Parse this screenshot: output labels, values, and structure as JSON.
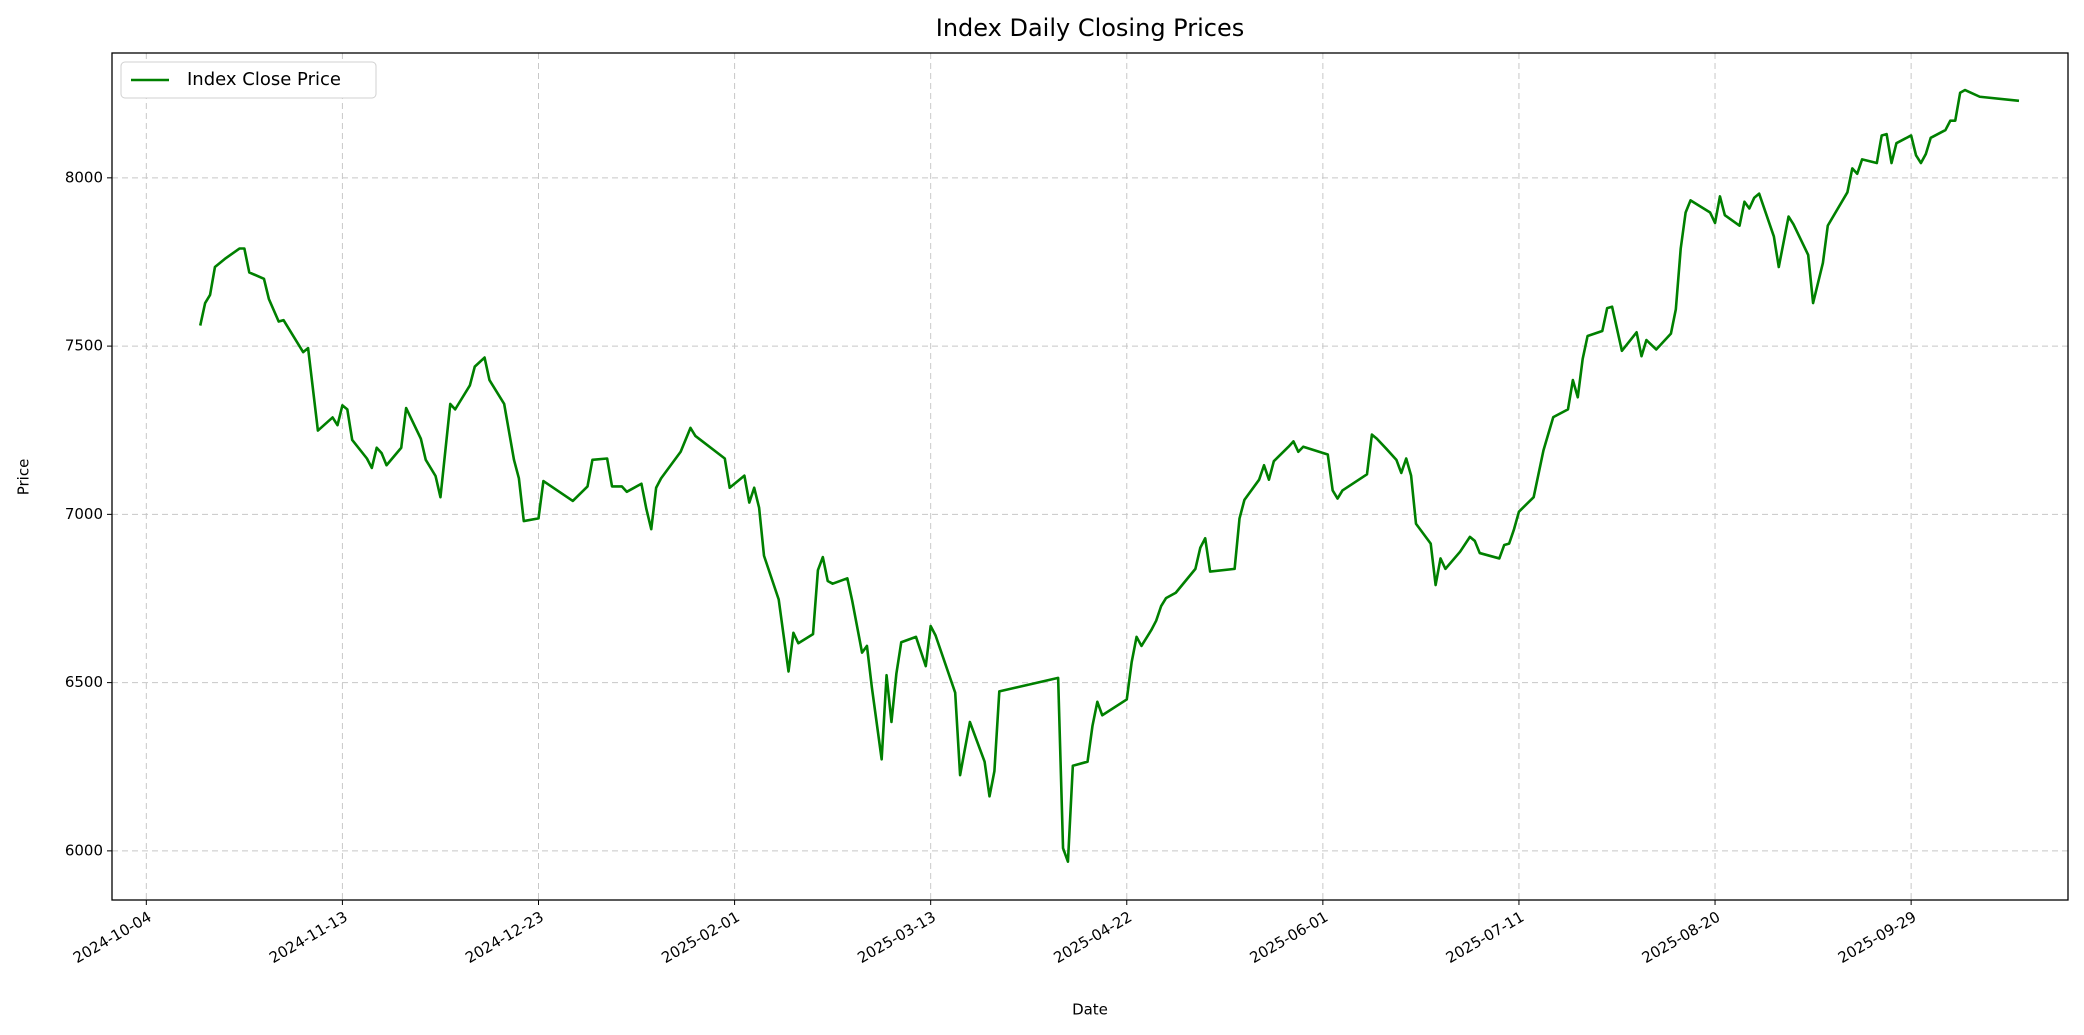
{
  "chart_data": {
    "type": "line",
    "title": "Index Daily Closing Prices",
    "x_label": "Date",
    "y_label": "Price",
    "x": [
      "2024-10-15",
      "2024-10-16",
      "2024-10-17",
      "2024-10-18",
      "2024-10-20",
      "2024-10-23",
      "2024-10-24",
      "2024-10-25",
      "2024-10-28",
      "2024-10-29",
      "2024-10-31",
      "2024-11-01",
      "2024-11-05",
      "2024-11-06",
      "2024-11-08",
      "2024-11-11",
      "2024-11-12",
      "2024-11-13",
      "2024-11-14",
      "2024-11-15",
      "2024-11-18",
      "2024-11-19",
      "2024-11-20",
      "2024-11-21",
      "2024-11-22",
      "2024-11-25",
      "2024-11-26",
      "2024-11-29",
      "2024-11-30",
      "2024-12-02",
      "2024-12-03",
      "2024-12-05",
      "2024-12-06",
      "2024-12-09",
      "2024-12-10",
      "2024-12-12",
      "2024-12-13",
      "2024-12-16",
      "2024-12-18",
      "2024-12-19",
      "2024-12-20",
      "2024-12-23",
      "2024-12-24",
      "2024-12-30",
      "2025-01-02",
      "2025-01-03",
      "2025-01-06",
      "2025-01-07",
      "2025-01-09",
      "2025-01-10",
      "2025-01-13",
      "2025-01-14",
      "2025-01-15",
      "2025-01-16",
      "2025-01-17",
      "2025-01-21",
      "2025-01-23",
      "2025-01-24",
      "2025-01-30",
      "2025-01-31",
      "2025-02-03",
      "2025-02-04",
      "2025-02-05",
      "2025-02-06",
      "2025-02-07",
      "2025-02-10",
      "2025-02-12",
      "2025-02-13",
      "2025-02-14",
      "2025-02-17",
      "2025-02-18",
      "2025-02-19",
      "2025-02-20",
      "2025-02-21",
      "2025-02-24",
      "2025-02-25",
      "2025-02-27",
      "2025-02-28",
      "2025-03-01",
      "2025-03-03",
      "2025-03-04",
      "2025-03-05",
      "2025-03-06",
      "2025-03-07",
      "2025-03-10",
      "2025-03-12",
      "2025-03-13",
      "2025-03-14",
      "2025-03-18",
      "2025-03-19",
      "2025-03-21",
      "2025-03-24",
      "2025-03-25",
      "2025-03-26",
      "2025-03-27",
      "2025-04-08",
      "2025-04-09",
      "2025-04-10",
      "2025-04-11",
      "2025-04-14",
      "2025-04-15",
      "2025-04-16",
      "2025-04-17",
      "2025-04-22",
      "2025-04-23",
      "2025-04-24",
      "2025-04-25",
      "2025-04-27",
      "2025-04-28",
      "2025-04-29",
      "2025-04-30",
      "2025-05-02",
      "2025-05-06",
      "2025-05-07",
      "2025-05-08",
      "2025-05-09",
      "2025-05-14",
      "2025-05-15",
      "2025-05-16",
      "2025-05-19",
      "2025-05-20",
      "2025-05-21",
      "2025-05-22",
      "2025-05-25",
      "2025-05-26",
      "2025-05-27",
      "2025-05-28",
      "2025-06-02",
      "2025-06-03",
      "2025-06-04",
      "2025-06-05",
      "2025-06-10",
      "2025-06-11",
      "2025-06-12",
      "2025-06-14",
      "2025-06-16",
      "2025-06-17",
      "2025-06-18",
      "2025-06-19",
      "2025-06-20",
      "2025-06-23",
      "2025-06-24",
      "2025-06-25",
      "2025-06-26",
      "2025-06-29",
      "2025-07-01",
      "2025-07-02",
      "2025-07-03",
      "2025-07-07",
      "2025-07-08",
      "2025-07-09",
      "2025-07-10",
      "2025-07-11",
      "2025-07-14",
      "2025-07-16",
      "2025-07-18",
      "2025-07-21",
      "2025-07-22",
      "2025-07-23",
      "2025-07-24",
      "2025-07-25",
      "2025-07-28",
      "2025-07-29",
      "2025-07-30",
      "2025-08-01",
      "2025-08-04",
      "2025-08-05",
      "2025-08-06",
      "2025-08-08",
      "2025-08-11",
      "2025-08-12",
      "2025-08-13",
      "2025-08-14",
      "2025-08-15",
      "2025-08-19",
      "2025-08-20",
      "2025-08-21",
      "2025-08-22",
      "2025-08-25",
      "2025-08-26",
      "2025-08-27",
      "2025-08-28",
      "2025-08-29",
      "2025-09-01",
      "2025-09-02",
      "2025-09-03",
      "2025-09-04",
      "2025-09-05",
      "2025-09-08",
      "2025-09-09",
      "2025-09-11",
      "2025-09-12",
      "2025-09-16",
      "2025-09-17",
      "2025-09-18",
      "2025-09-19",
      "2025-09-22",
      "2025-09-23",
      "2025-09-24",
      "2025-09-25",
      "2025-09-26",
      "2025-09-29",
      "2025-09-30",
      "2025-10-01",
      "2025-10-02",
      "2025-10-03",
      "2025-10-06",
      "2025-10-07",
      "2025-10-08",
      "2025-10-09",
      "2025-10-10",
      "2025-10-13",
      "2025-10-21"
    ],
    "series": [
      {
        "name": "Index Close Price",
        "color": "#008000",
        "values": [
          7561,
          7628,
          7652,
          7735,
          7759,
          7790,
          7790,
          7719,
          7700,
          7640,
          7573,
          7577,
          7482,
          7494,
          7249,
          7288,
          7265,
          7324,
          7312,
          7221,
          7166,
          7138,
          7198,
          7182,
          7146,
          7198,
          7316,
          7225,
          7162,
          7114,
          7051,
          7328,
          7312,
          7383,
          7439,
          7466,
          7399,
          7328,
          7162,
          7107,
          6980,
          6988,
          7099,
          7040,
          7083,
          7162,
          7166,
          7083,
          7083,
          7067,
          7091,
          7016,
          6956,
          7079,
          7107,
          7186,
          7257,
          7233,
          7166,
          7079,
          7115,
          7035,
          7079,
          7020,
          6877,
          6747,
          6533,
          6648,
          6617,
          6644,
          6834,
          6873,
          6802,
          6794,
          6810,
          6743,
          6589,
          6609,
          6486,
          6272,
          6522,
          6383,
          6526,
          6620,
          6636,
          6549,
          6668,
          6640,
          6470,
          6225,
          6383,
          6265,
          6162,
          6237,
          6474,
          6514,
          6008,
          5968,
          6253,
          6265,
          6371,
          6443,
          6403,
          6450,
          6561,
          6636,
          6609,
          6656,
          6684,
          6727,
          6751,
          6767,
          6838,
          6901,
          6929,
          6830,
          6838,
          6988,
          7043,
          7103,
          7146,
          7103,
          7158,
          7201,
          7217,
          7186,
          7201,
          7178,
          7071,
          7047,
          7071,
          7119,
          7237,
          7225,
          7194,
          7162,
          7123,
          7166,
          7115,
          6972,
          6913,
          6790,
          6869,
          6838,
          6889,
          6933,
          6921,
          6885,
          6869,
          6909,
          6913,
          6956,
          7008,
          7051,
          7190,
          7289,
          7312,
          7399,
          7348,
          7462,
          7530,
          7545,
          7613,
          7617,
          7486,
          7541,
          7470,
          7518,
          7490,
          7537,
          7609,
          7790,
          7897,
          7933,
          7897,
          7866,
          7945,
          7889,
          7858,
          7929,
          7909,
          7941,
          7953,
          7826,
          7735,
          7810,
          7885,
          7862,
          7771,
          7628,
          7747,
          7858,
          7957,
          8028,
          8012,
          8055,
          8044,
          8126,
          8130,
          8044,
          8103,
          8126,
          8067,
          8044,
          8071,
          8119,
          8142,
          8170,
          8170,
          8253,
          8261,
          8241,
          8229
        ]
      }
    ],
    "xlim": [
      "2024-09-27",
      "2025-10-31"
    ],
    "xticks": [
      "2024-10-04",
      "2024-11-13",
      "2024-12-23",
      "2025-02-01",
      "2025-03-13",
      "2025-04-22",
      "2025-06-01",
      "2025-07-11",
      "2025-08-20",
      "2025-09-29"
    ],
    "ylim": [
      5854,
      8371
    ],
    "yticks": [
      6000,
      6500,
      7000,
      7500,
      8000
    ],
    "grid": true,
    "legend": "upper left"
  }
}
